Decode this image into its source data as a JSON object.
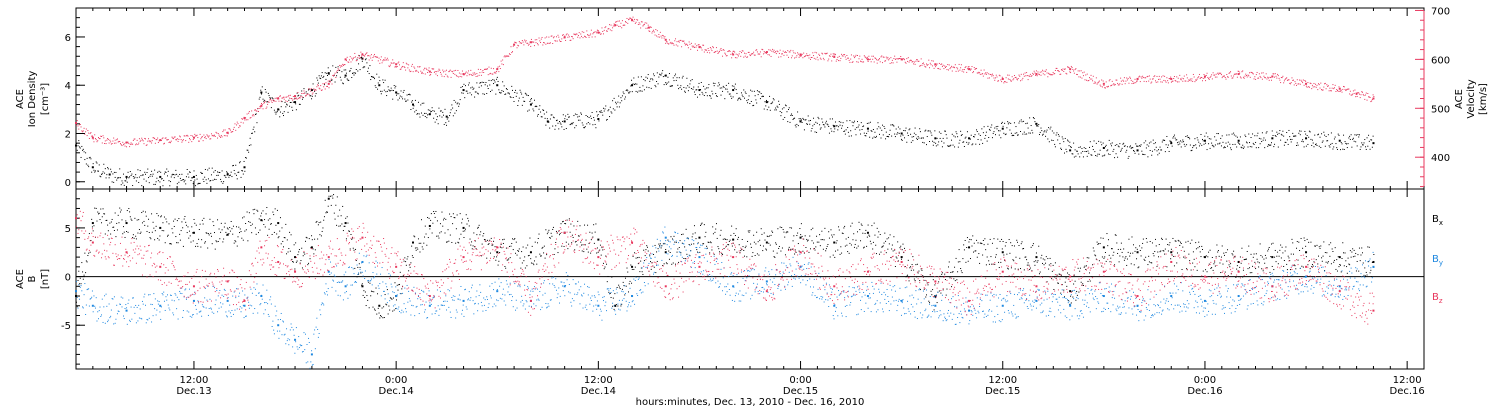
{
  "xaxis": {
    "title": "hours:minutes, Dec. 13, 2010 - Dec. 16, 2010",
    "start_hour": 5,
    "end_hour": 85,
    "ticks": [
      {
        "hour": 12,
        "time": "12:00",
        "date": "Dec.13"
      },
      {
        "hour": 24,
        "time": "0:00",
        "date": "Dec.14"
      },
      {
        "hour": 36,
        "time": "12:00",
        "date": "Dec.14"
      },
      {
        "hour": 48,
        "time": "0:00",
        "date": "Dec.15"
      },
      {
        "hour": 60,
        "time": "12:00",
        "date": "Dec.15"
      },
      {
        "hour": 72,
        "time": "0:00",
        "date": "Dec.16"
      },
      {
        "hour": 84,
        "time": "12:00",
        "date": "Dec.16"
      }
    ]
  },
  "chart_data": [
    {
      "type": "scatter",
      "ylabel_left": [
        "ACE",
        "Ion Density",
        "[cm⁻³]"
      ],
      "ylabel_right": [
        "ACE",
        "Velocity",
        "[km/s]"
      ],
      "left_axis": {
        "range": [
          -0.3,
          7.2
        ],
        "ticks": [
          0,
          2,
          4,
          6
        ],
        "color": "#000000"
      },
      "right_axis": {
        "range": [
          335,
          705
        ],
        "ticks": [
          400,
          500,
          600,
          700
        ],
        "color": "#e8385e"
      },
      "series": [
        {
          "axis": "left",
          "color": "#000000",
          "x": [
            5.0,
            6,
            7,
            8,
            10,
            12,
            14,
            15,
            16,
            17,
            18,
            19,
            20,
            21,
            22,
            23,
            24,
            25,
            26,
            27,
            28,
            30,
            32,
            33,
            34,
            36,
            38,
            40,
            42,
            44,
            46,
            48,
            50,
            52,
            54,
            56,
            58,
            60,
            62,
            64,
            66,
            68,
            70,
            72,
            74,
            76,
            78,
            80,
            82
          ],
          "y": [
            1.5,
            0.6,
            0.3,
            0.2,
            0.2,
            0.2,
            0.3,
            0.6,
            3.7,
            3.0,
            3.3,
            3.8,
            4.5,
            4.4,
            5.1,
            4.0,
            3.7,
            3.2,
            2.8,
            2.7,
            3.8,
            4.0,
            3.2,
            2.5,
            2.5,
            2.6,
            4.0,
            4.4,
            3.8,
            3.8,
            3.3,
            2.5,
            2.3,
            2.2,
            2.0,
            1.8,
            1.8,
            2.2,
            2.4,
            1.3,
            1.4,
            1.3,
            1.6,
            1.7,
            1.7,
            1.8,
            1.8,
            1.7,
            1.6
          ]
        },
        {
          "axis": "right",
          "color": "#e8385e",
          "x": [
            5.0,
            6,
            8,
            10,
            12,
            14,
            15,
            16,
            17,
            18,
            20,
            21,
            22,
            24,
            26,
            28,
            30,
            31,
            32,
            34,
            36,
            37,
            38,
            39,
            40,
            42,
            44,
            46,
            48,
            50,
            52,
            54,
            56,
            58,
            60,
            62,
            64,
            66,
            68,
            70,
            72,
            74,
            76,
            78,
            80,
            81,
            82
          ],
          "y": [
            470,
            440,
            430,
            435,
            440,
            450,
            480,
            505,
            520,
            525,
            550,
            600,
            610,
            590,
            575,
            570,
            580,
            630,
            635,
            645,
            655,
            670,
            680,
            665,
            640,
            625,
            610,
            615,
            610,
            605,
            600,
            600,
            590,
            580,
            560,
            570,
            580,
            550,
            560,
            560,
            565,
            570,
            565,
            550,
            540,
            530,
            520
          ]
        }
      ]
    },
    {
      "type": "scatter",
      "ylabel_left": [
        "ACE",
        "B",
        "[nT]"
      ],
      "left_axis": {
        "range": [
          -9.5,
          9.0
        ],
        "ticks": [
          -5,
          0,
          5
        ],
        "color": "#000000"
      },
      "zero_line": true,
      "legend": [
        {
          "name": "B",
          "sub": "x",
          "color": "#000000"
        },
        {
          "name": "B",
          "sub": "y",
          "color": "#1f88e0"
        },
        {
          "name": "B",
          "sub": "z",
          "color": "#e8385e"
        }
      ],
      "series": [
        {
          "color": "#000000",
          "x": [
            5.0,
            6,
            8,
            10,
            12,
            14,
            16,
            17,
            18,
            19,
            20,
            21,
            22,
            23,
            24,
            25,
            26,
            28,
            30,
            32,
            34,
            36,
            37,
            38,
            40,
            42,
            44,
            46,
            48,
            50,
            52,
            54,
            56,
            58,
            60,
            62,
            64,
            66,
            68,
            70,
            72,
            74,
            76,
            78,
            80,
            82
          ],
          "y": [
            -2.0,
            5.5,
            5.5,
            5.0,
            4.5,
            4.3,
            5.8,
            5.5,
            2.0,
            3.0,
            8.0,
            5.5,
            -1.0,
            -3.0,
            -2.0,
            3.5,
            5.2,
            5.0,
            2.5,
            2.5,
            4.5,
            3.8,
            -3.0,
            1.0,
            2.5,
            4.0,
            3.8,
            3.5,
            4.0,
            3.5,
            4.5,
            2.0,
            -2.0,
            3.0,
            2.5,
            2.0,
            -1.5,
            3.0,
            2.5,
            2.5,
            2.0,
            1.5,
            2.0,
            2.5,
            2.0,
            1.5
          ]
        },
        {
          "color": "#1f88e0",
          "x": [
            5.0,
            6,
            8,
            10,
            12,
            14,
            15,
            16,
            17,
            18,
            19,
            20,
            21,
            22,
            24,
            26,
            28,
            30,
            32,
            34,
            36,
            38,
            40,
            42,
            44,
            46,
            48,
            50,
            52,
            54,
            56,
            58,
            60,
            62,
            64,
            66,
            68,
            70,
            72,
            74,
            76,
            78,
            80,
            82
          ],
          "y": [
            -1.5,
            -3.0,
            -3.5,
            -3.0,
            -2.5,
            -2.5,
            -3.0,
            -2.0,
            -5.0,
            -6.5,
            -8.0,
            0.5,
            -1.0,
            1.5,
            -2.0,
            -3.0,
            -2.5,
            -1.5,
            -2.5,
            -1.0,
            -3.0,
            -2.0,
            4.0,
            2.0,
            -1.0,
            -0.5,
            1.0,
            -3.0,
            -2.0,
            -2.5,
            -3.0,
            -3.5,
            -3.0,
            -2.5,
            -3.0,
            -2.0,
            -3.0,
            -2.0,
            -2.5,
            -2.0,
            -1.0,
            0.0,
            -1.0,
            1.0
          ]
        },
        {
          "color": "#e8385e",
          "x": [
            5.0,
            6,
            8,
            10,
            12,
            14,
            15,
            16,
            17,
            18,
            20,
            22,
            24,
            26,
            28,
            30,
            32,
            34,
            36,
            38,
            40,
            42,
            44,
            46,
            48,
            50,
            52,
            54,
            56,
            58,
            60,
            62,
            64,
            66,
            68,
            70,
            72,
            74,
            76,
            78,
            80,
            82
          ],
          "y": [
            6.0,
            3.5,
            2.5,
            1.0,
            -1.0,
            -0.5,
            -2.5,
            3.0,
            1.5,
            0.5,
            2.0,
            4.0,
            1.0,
            -2.0,
            2.0,
            3.0,
            -2.5,
            4.5,
            2.0,
            3.5,
            -1.0,
            1.0,
            2.0,
            -1.5,
            2.5,
            -1.0,
            0.5,
            1.5,
            -0.5,
            -2.5,
            0.5,
            -1.0,
            0.0,
            0.5,
            -2.0,
            1.5,
            0.0,
            0.5,
            -1.0,
            1.0,
            -1.5,
            -3.5
          ]
        }
      ]
    }
  ]
}
